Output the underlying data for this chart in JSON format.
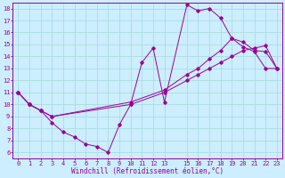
{
  "xlabel": "Windchill (Refroidissement éolien,°C)",
  "bg_color": "#cceeff",
  "grid_color": "#aadddd",
  "line_color": "#990099",
  "xlim": [
    -0.5,
    23.5
  ],
  "ylim": [
    5.5,
    18.5
  ],
  "xticks": [
    0,
    1,
    2,
    3,
    4,
    5,
    6,
    7,
    8,
    9,
    10,
    11,
    12,
    13,
    15,
    16,
    17,
    18,
    19,
    20,
    21,
    22,
    23
  ],
  "yticks": [
    6,
    7,
    8,
    9,
    10,
    11,
    12,
    13,
    14,
    15,
    16,
    17,
    18
  ],
  "line1_x": [
    0,
    1,
    2,
    3,
    4,
    5,
    6,
    7,
    8,
    9,
    10,
    11,
    12,
    13,
    15,
    16,
    17,
    18,
    19,
    20,
    21,
    22,
    23
  ],
  "line1_y": [
    11,
    10,
    9.5,
    8.5,
    7.7,
    7.3,
    6.7,
    6.5,
    6.0,
    8.3,
    10.0,
    13.5,
    14.7,
    10.2,
    18.3,
    17.8,
    18.0,
    17.2,
    15.5,
    14.8,
    14.4,
    13.0,
    13.0
  ],
  "line2_x": [
    0,
    1,
    2,
    3,
    10,
    13,
    15,
    16,
    17,
    18,
    19,
    20,
    21,
    22,
    23
  ],
  "line2_y": [
    11,
    10,
    9.5,
    9.0,
    10.0,
    11.0,
    12.0,
    12.5,
    13.0,
    13.5,
    14.0,
    14.5,
    14.7,
    14.9,
    13.0
  ],
  "line3_x": [
    0,
    1,
    2,
    3,
    10,
    13,
    15,
    16,
    17,
    18,
    19,
    20,
    21,
    22,
    23
  ],
  "line3_y": [
    11,
    10,
    9.5,
    9.0,
    10.2,
    11.2,
    12.5,
    13.0,
    13.8,
    14.5,
    15.5,
    15.2,
    14.5,
    14.4,
    13.0
  ]
}
